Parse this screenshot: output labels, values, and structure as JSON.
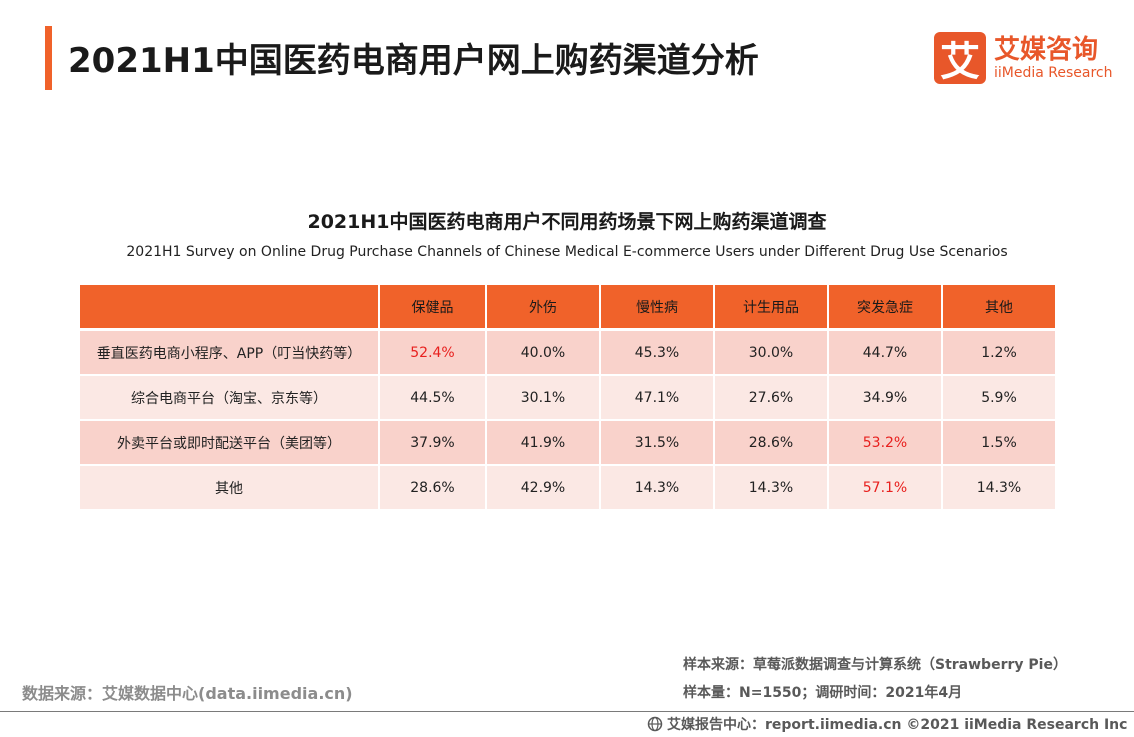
{
  "header": {
    "title": "2021H1中国医药电商用户网上购药渠道分析",
    "logo": {
      "mark": "艾",
      "name_cn": "艾媒咨询",
      "name_en": "iiMedia Research"
    }
  },
  "colors": {
    "accent": "#f0622a",
    "row_dark": "#f9d2cb",
    "row_light": "#fbe8e4",
    "highlight": "#e8201e"
  },
  "chart_data": {
    "type": "table",
    "title": "2021H1中国医药电商用户不同用药场景下网上购药渠道调查",
    "subtitle": "2021H1 Survey on Online Drug Purchase Channels of Chinese Medical E-commerce Users under Different Drug Use Scenarios",
    "columns": [
      "",
      "保健品",
      "外伤",
      "慢性病",
      "计生用品",
      "突发急症",
      "其他"
    ],
    "rows": [
      {
        "label": "垂直医药电商小程序、APP（叮当快药等）",
        "values": [
          "52.4%",
          "40.0%",
          "45.3%",
          "30.0%",
          "44.7%",
          "1.2%"
        ],
        "highlight": [
          0
        ]
      },
      {
        "label": "综合电商平台（淘宝、京东等）",
        "values": [
          "44.5%",
          "30.1%",
          "47.1%",
          "27.6%",
          "34.9%",
          "5.9%"
        ],
        "highlight": []
      },
      {
        "label": "外卖平台或即时配送平台（美团等）",
        "values": [
          "37.9%",
          "41.9%",
          "31.5%",
          "28.6%",
          "53.2%",
          "1.5%"
        ],
        "highlight": [
          4
        ]
      },
      {
        "label": "其他",
        "values": [
          "28.6%",
          "42.9%",
          "14.3%",
          "14.3%",
          "57.1%",
          "14.3%"
        ],
        "highlight": [
          4
        ]
      }
    ]
  },
  "footer": {
    "source": "数据来源：艾媒数据中心(data.iimedia.cn)",
    "sample_source": "样本来源：草莓派数据调查与计算系统（Strawberry Pie）",
    "sample_size": "样本量：N=1550；调研时间：2021年4月",
    "copyright": "艾媒报告中心：report.iimedia.cn  ©2021  iiMedia Research  Inc"
  }
}
